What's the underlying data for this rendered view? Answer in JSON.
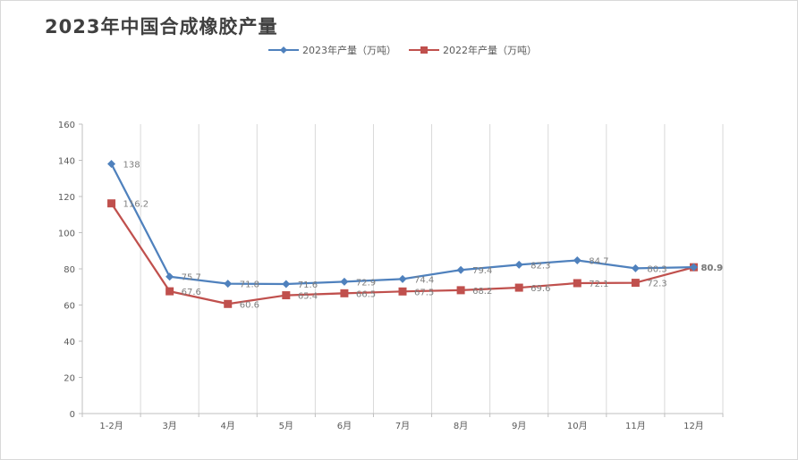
{
  "title": "2023年中国合成橡胶产量",
  "colors": {
    "series_2023": "#4f81bd",
    "series_2022": "#c0504d",
    "grid": "#d9d9d9",
    "axis": "#bfbfbf"
  },
  "chart_data": {
    "type": "line",
    "title": "2023年中国合成橡胶产量",
    "categories": [
      "1-2月",
      "3月",
      "4月",
      "5月",
      "6月",
      "7月",
      "8月",
      "9月",
      "10月",
      "11月",
      "12月"
    ],
    "series": [
      {
        "name": "2023年产量（万吨）",
        "marker": "diamond",
        "color": "#4f81bd",
        "values": [
          138,
          75.7,
          71.8,
          71.6,
          72.9,
          74.4,
          79.4,
          82.3,
          84.7,
          80.3,
          80.9
        ]
      },
      {
        "name": "2022年产量（万吨）",
        "marker": "square",
        "color": "#c0504d",
        "values": [
          116.2,
          67.6,
          60.6,
          65.4,
          66.5,
          67.5,
          68.2,
          69.6,
          72.1,
          72.3,
          80.9
        ]
      }
    ],
    "ylim": [
      0,
      160
    ],
    "yticks": [
      0,
      20,
      40,
      60,
      80,
      100,
      120,
      140,
      160
    ],
    "grid": "vertical",
    "legend": "top-center",
    "xlabel": "",
    "ylabel": ""
  }
}
